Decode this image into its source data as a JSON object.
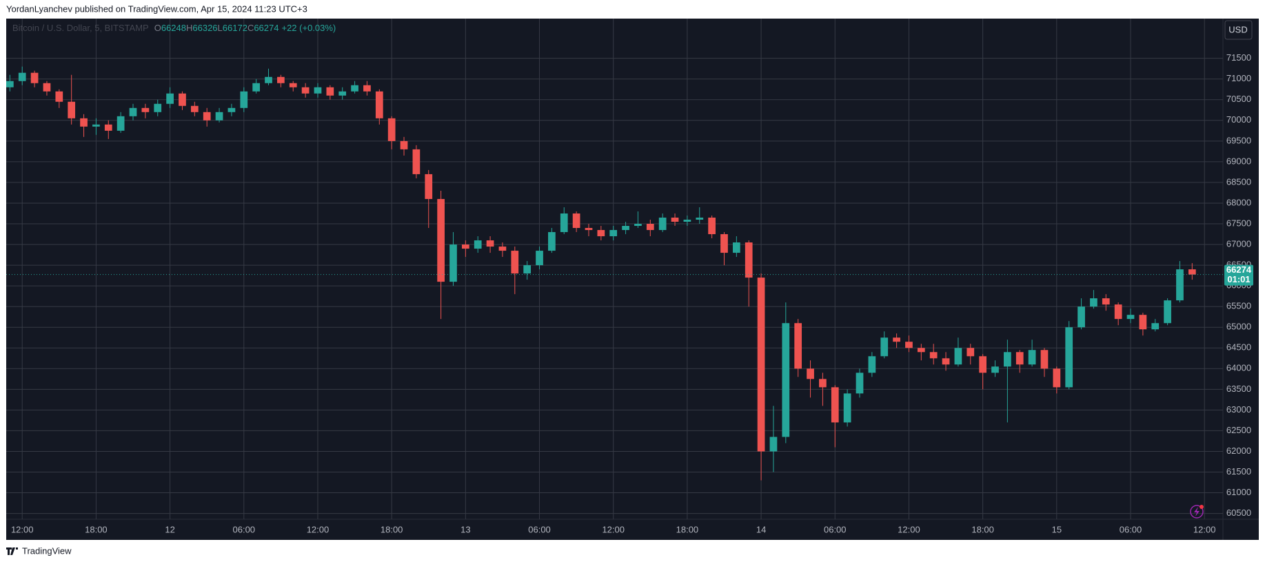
{
  "chart_data": {
    "type": "candlestick",
    "header": "YordanLyanchev published on TradingView.com, Apr 15, 2024 11:23 UTC+3",
    "symbol": "Bitcoin / U.S. Dollar, 5, BITSTAMP",
    "ohlc_legend": [
      {
        "label": "O",
        "value": 66248
      },
      {
        "label": "H",
        "value": 66326
      },
      {
        "label": "L",
        "value": 66172
      },
      {
        "label": "C",
        "value": 66274
      }
    ],
    "change": "+22 (+0.03%)",
    "currency": "USD",
    "price_label": {
      "value": 66274,
      "countdown": "01:01"
    },
    "brand": "TradingView",
    "up_color": "#26a69a",
    "down_color": "#ef5350",
    "grid": true,
    "xlim": [
      -1.3,
      97.5
    ],
    "ylim": [
      60360,
      72460
    ],
    "xticks": [
      {
        "value": 0,
        "label": "12:00"
      },
      {
        "value": 6,
        "label": "18:00"
      },
      12,
      {
        "value": 18,
        "label": "06:00"
      },
      {
        "value": 24,
        "label": "12:00"
      },
      {
        "value": 30,
        "label": "18:00"
      },
      {
        "value": 36,
        "label": "13"
      },
      {
        "value": 42,
        "label": "06:00"
      },
      {
        "value": 48,
        "label": "12:00"
      },
      {
        "value": 54,
        "label": "18:00"
      },
      {
        "value": 60,
        "label": "14"
      },
      {
        "value": 66,
        "label": "06:00"
      },
      {
        "value": 72,
        "label": "12:00"
      },
      {
        "value": 78,
        "label": "18:00"
      },
      {
        "value": 84,
        "label": "15"
      },
      {
        "value": 90,
        "label": "06:00"
      },
      {
        "value": 96,
        "label": "12:00"
      }
    ],
    "yticks": [
      60500,
      61000,
      61500,
      62000,
      62500,
      63000,
      63500,
      64000,
      64500,
      65000,
      65500,
      66000,
      66500,
      67000,
      67500,
      68000,
      68500,
      69000,
      69500,
      70000,
      70500,
      71000,
      71500
    ],
    "x": [
      -1,
      0,
      1,
      2,
      3,
      4,
      5,
      6,
      7,
      8,
      9,
      10,
      11,
      12,
      13,
      14,
      15,
      16,
      17,
      18,
      19,
      20,
      21,
      22,
      23,
      24,
      25,
      26,
      27,
      28,
      29,
      30,
      31,
      32,
      33,
      34,
      35,
      36,
      37,
      38,
      39,
      40,
      41,
      42,
      43,
      44,
      45,
      46,
      47,
      48,
      49,
      50,
      51,
      52,
      53,
      54,
      55,
      56,
      57,
      58,
      59,
      60,
      61,
      62,
      63,
      64,
      65,
      66,
      67,
      68,
      69,
      70,
      71,
      72,
      73,
      74,
      75,
      76,
      77,
      78,
      79,
      80,
      81,
      82,
      83,
      84,
      85,
      86,
      87,
      88,
      89,
      90,
      91,
      92,
      93,
      94,
      95
    ],
    "open": [
      70800,
      70950,
      71150,
      70900,
      70700,
      70450,
      70050,
      69850,
      69900,
      69750,
      70100,
      70300,
      70200,
      70400,
      70650,
      70350,
      70200,
      70000,
      70200,
      70300,
      70700,
      70900,
      71050,
      70900,
      70800,
      70650,
      70800,
      70600,
      70700,
      70850,
      70700,
      70050,
      69500,
      69300,
      68700,
      68100,
      66100,
      67000,
      66900,
      67100,
      66950,
      66850,
      66300,
      66500,
      66850,
      67300,
      67750,
      67400,
      67350,
      67200,
      67350,
      67450,
      67500,
      67350,
      67650,
      67550,
      67600,
      67650,
      67250,
      66800,
      67050,
      66200,
      62000,
      62350,
      65100,
      64000,
      63750,
      63550,
      62700,
      63400,
      63900,
      64300,
      64750,
      64650,
      64500,
      64400,
      64250,
      64100,
      64500,
      64300,
      63900,
      64050,
      64400,
      64100,
      64450,
      64000,
      63550,
      65000,
      65500,
      65700,
      65550,
      65200,
      65300,
      64950,
      65100,
      65650,
      66400
    ],
    "high": [
      71100,
      71300,
      71200,
      70950,
      70750,
      71100,
      70150,
      70050,
      70000,
      70200,
      70400,
      70400,
      70500,
      70800,
      70700,
      70450,
      70300,
      70300,
      70400,
      70800,
      71000,
      71250,
      71100,
      70950,
      70900,
      70900,
      70850,
      70800,
      70950,
      70950,
      70750,
      70100,
      69600,
      69400,
      68800,
      68300,
      67300,
      67100,
      67200,
      67200,
      67050,
      66950,
      66600,
      66950,
      67400,
      67900,
      67800,
      67500,
      67450,
      67450,
      67550,
      67800,
      67600,
      67750,
      67750,
      67700,
      67900,
      67700,
      67300,
      67200,
      67100,
      66300,
      63100,
      65600,
      65200,
      64200,
      63900,
      63600,
      63500,
      64000,
      64400,
      64900,
      64850,
      64800,
      64600,
      64600,
      64400,
      64750,
      64600,
      64350,
      64200,
      64700,
      64450,
      64700,
      64500,
      64050,
      65150,
      65700,
      65900,
      65800,
      65600,
      65450,
      65350,
      65200,
      65700,
      66600,
      66550
    ],
    "low": [
      70700,
      70850,
      70800,
      70600,
      70300,
      69900,
      69600,
      69650,
      69550,
      69700,
      70000,
      70050,
      70100,
      70300,
      70250,
      70100,
      69850,
      69950,
      70100,
      70200,
      70650,
      70850,
      70800,
      70700,
      70550,
      70550,
      70500,
      70500,
      70650,
      70600,
      69900,
      69300,
      69150,
      68600,
      67400,
      65200,
      66000,
      66700,
      66800,
      66800,
      66700,
      65800,
      66150,
      66400,
      66800,
      67250,
      67300,
      67200,
      67100,
      67100,
      67250,
      67400,
      67200,
      67300,
      67450,
      67450,
      67500,
      67150,
      66500,
      66700,
      65500,
      61300,
      61500,
      62200,
      63800,
      63300,
      63100,
      62100,
      62600,
      63300,
      63800,
      64250,
      64500,
      64400,
      64200,
      64100,
      63950,
      64050,
      64100,
      63500,
      63800,
      62700,
      63900,
      64050,
      63800,
      63400,
      63500,
      64950,
      65450,
      65400,
      65050,
      65100,
      64800,
      64900,
      65050,
      65600,
      66150
    ],
    "close": [
      70950,
      71150,
      70900,
      70700,
      70450,
      70050,
      69850,
      69900,
      69750,
      70100,
      70300,
      70200,
      70400,
      70650,
      70350,
      70200,
      70000,
      70200,
      70300,
      70700,
      70900,
      71050,
      70900,
      70800,
      70650,
      70800,
      70600,
      70700,
      70850,
      70700,
      70050,
      69500,
      69300,
      68700,
      68100,
      66100,
      67000,
      66900,
      67100,
      66950,
      66850,
      66300,
      66500,
      66850,
      67300,
      67750,
      67400,
      67350,
      67200,
      67350,
      67450,
      67500,
      67350,
      67650,
      67550,
      67600,
      67650,
      67250,
      66800,
      67050,
      66200,
      62000,
      62350,
      65100,
      64000,
      63750,
      63550,
      62700,
      63400,
      63900,
      64300,
      64750,
      64650,
      64500,
      64400,
      64250,
      64100,
      64500,
      64300,
      63900,
      64050,
      64400,
      64100,
      64450,
      64000,
      63550,
      65000,
      65500,
      65700,
      65550,
      65200,
      65300,
      64950,
      65100,
      65650,
      66400,
      66274
    ]
  }
}
